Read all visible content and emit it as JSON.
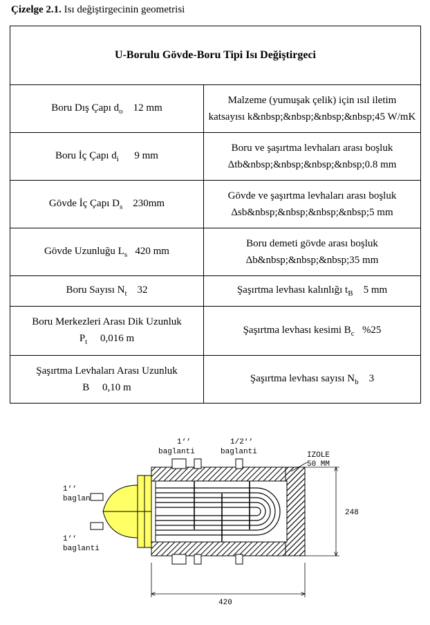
{
  "caption": {
    "label": "Çizelge 2.1.",
    "text": "Isı değiştirgecinin geometrisi"
  },
  "table": {
    "header": "U-Borulu Gövde-Boru Tipi Isı Değiştirgeci",
    "rows": [
      {
        "left_html": "Boru Dış Çapı d<span class=\"sub\">o</span>&nbsp;&nbsp;&nbsp;&nbsp;12 mm",
        "right_line1": "Malzeme (yumuşak çelik) için ısıl iletim",
        "right_line2": "katsayısı k&nbsp;&nbsp;&nbsp;&nbsp;45 W/mK"
      },
      {
        "left_html": "Boru İç Çapı d<span class=\"sub\">i</span>&nbsp;&nbsp;&nbsp;&nbsp;&nbsp;&nbsp;9 mm",
        "right_line1": "Boru ve şaşırtma levhaları arası boşluk",
        "right_line2": "Δtb&nbsp;&nbsp;&nbsp;&nbsp;0.8 mm"
      },
      {
        "left_html": "Gövde İç Çapı D<span class=\"sub\">s</span>&nbsp;&nbsp;&nbsp;&nbsp;230mm",
        "right_line1": "Gövde ve şaşırtma levhaları arası boşluk",
        "right_line2": "Δsb&nbsp;&nbsp;&nbsp;&nbsp;5 mm"
      },
      {
        "left_html": "Gövde Uzunluğu L<span class=\"sub\">s</span>&nbsp;&nbsp;&nbsp;420 mm",
        "right_line1": "Boru demeti gövde arası boşluk",
        "right_line2": "Δb&nbsp;&nbsp;&nbsp;35 mm"
      },
      {
        "left_html": "Boru Sayısı N<span class=\"sub\">t</span>&nbsp;&nbsp;&nbsp;&nbsp;32",
        "right_html": "Şaşırtma levhası kalınlığı t<span class=\"sub\">B</span>&nbsp;&nbsp;&nbsp;&nbsp;5 mm"
      },
      {
        "left_line1": "Boru Merkezleri Arası Dik Uzunluk",
        "left_line2_html": "P<span class=\"sub\">t</span>&nbsp;&nbsp;&nbsp;&nbsp;&nbsp;0,016 m",
        "right_html": "Şaşırtma levhası kesimi B<span class=\"sub\">c</span>&nbsp;&nbsp;&nbsp;%25"
      },
      {
        "left_line1": "Şaşırtma Levhaları Arası Uzunluk",
        "left_line2_html": "B&nbsp;&nbsp;&nbsp;&nbsp;&nbsp;0,10 m",
        "right_html": "Şaşırtma levhası sayısı N<span class=\"sub\">b</span>&nbsp;&nbsp;&nbsp;&nbsp;3"
      }
    ]
  },
  "figure": {
    "labels": {
      "top1_a": "1‘‘",
      "top1_b": "baglanti",
      "top2_a": "1/2‘‘",
      "top2_b": "baglanti",
      "left1_a": "1‘‘",
      "left1_b": "baglanti",
      "left2_a": "1‘‘",
      "left2_b": "baglanti",
      "izole_a": "IZOLE",
      "izole_b": "50 MM",
      "dim_h": "248",
      "dim_w": "420"
    },
    "colors": {
      "background": "#ffffff",
      "yellow": "#ffff66",
      "line": "#000000"
    },
    "shell_length": 420,
    "height_overall": 248,
    "insulation": 50
  }
}
